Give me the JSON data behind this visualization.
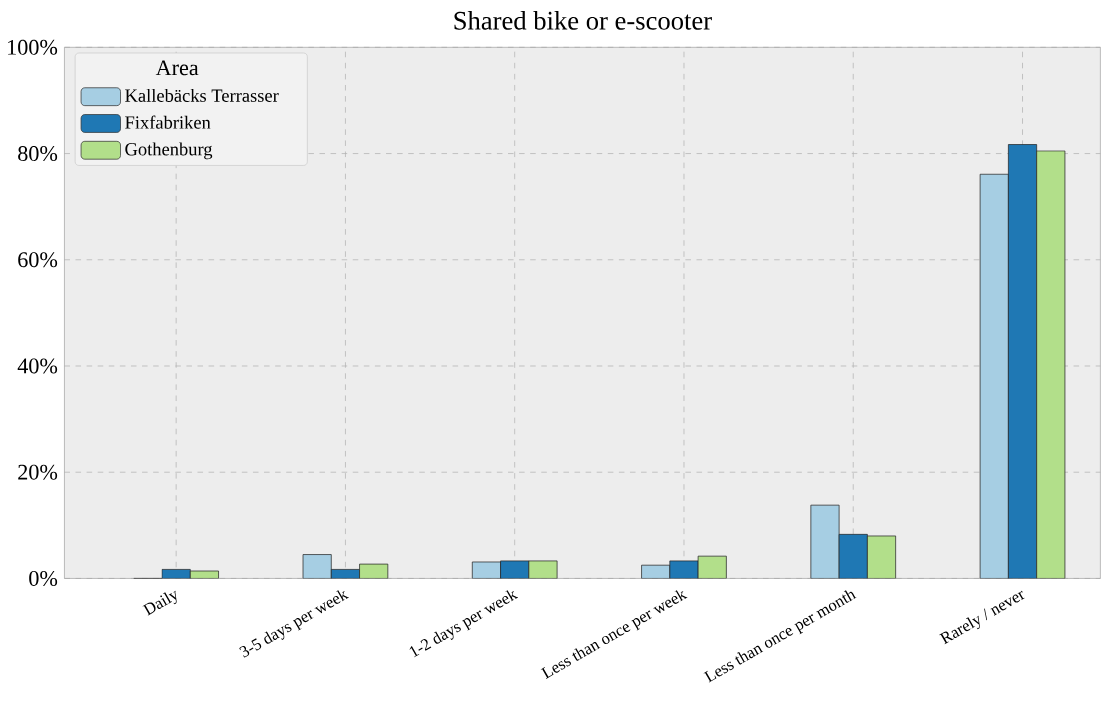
{
  "chart_data": {
    "type": "bar",
    "title": "Shared bike or e-scooter",
    "categories": [
      "Daily",
      "3-5 days per week",
      "1-2 days per week",
      "Less than once per week",
      "Less than once per month",
      "Rarely / never"
    ],
    "series": [
      {
        "name": "Kallebäcks Terrasser",
        "color": "#a6cee3",
        "values": [
          0,
          4.5,
          3.1,
          2.5,
          13.8,
          76.1
        ]
      },
      {
        "name": "Fixfabriken",
        "color": "#1f78b4",
        "values": [
          1.7,
          1.7,
          3.3,
          3.3,
          8.3,
          81.7
        ]
      },
      {
        "name": "Gothenburg",
        "color": "#b2df8a",
        "values": [
          1.4,
          2.7,
          3.3,
          4.2,
          8.0,
          80.5
        ]
      }
    ],
    "legend_title": "Area",
    "legend": "top left",
    "grid": true,
    "ylim": [
      0,
      100
    ],
    "yticks": [
      {
        "value": 0,
        "label": "0%"
      },
      {
        "value": 20,
        "label": "20%"
      },
      {
        "value": 40,
        "label": "40%"
      },
      {
        "value": 60,
        "label": "60%"
      },
      {
        "value": 80,
        "label": "80%"
      },
      {
        "value": 100,
        "label": "100%"
      }
    ]
  }
}
